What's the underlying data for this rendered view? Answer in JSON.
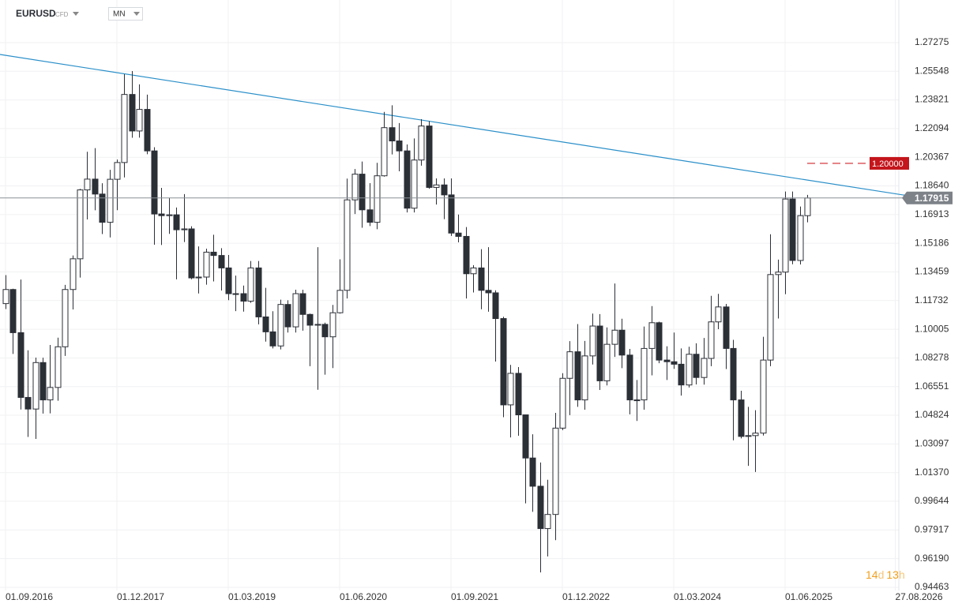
{
  "header": {
    "symbol": "EURUSD",
    "instrument": "CFD",
    "timeframe": "MN"
  },
  "countdown": [
    "14",
    "d",
    "13",
    "h"
  ],
  "chart_data": {
    "type": "candlestick",
    "x": [
      "01.09.2016",
      "01.10.2016",
      "01.11.2016",
      "01.12.2016",
      "01.01.2017",
      "01.02.2017",
      "01.03.2017",
      "01.04.2017",
      "01.05.2017",
      "01.06.2017",
      "01.07.2017",
      "01.08.2017",
      "01.09.2017",
      "01.10.2017",
      "01.11.2017",
      "01.12.2017",
      "01.01.2018",
      "01.02.2018",
      "01.03.2018",
      "01.04.2018",
      "01.05.2018",
      "01.06.2018",
      "01.07.2018",
      "01.08.2018",
      "01.09.2018",
      "01.10.2018",
      "01.11.2018",
      "01.12.2018",
      "01.01.2019",
      "01.02.2019",
      "01.03.2019",
      "01.04.2019",
      "01.05.2019",
      "01.06.2019",
      "01.07.2019",
      "01.08.2019",
      "01.09.2019",
      "01.10.2019",
      "01.11.2019",
      "01.12.2019",
      "01.01.2020",
      "01.02.2020",
      "01.03.2020",
      "01.04.2020",
      "01.05.2020",
      "01.06.2020",
      "01.07.2020",
      "01.08.2020",
      "01.09.2020",
      "01.10.2020",
      "01.11.2020",
      "01.12.2020",
      "01.01.2021",
      "01.02.2021",
      "01.03.2021",
      "01.04.2021",
      "01.05.2021",
      "01.06.2021",
      "01.07.2021",
      "01.08.2021",
      "01.09.2021",
      "01.10.2021",
      "01.11.2021",
      "01.12.2021",
      "01.01.2022",
      "01.02.2022",
      "01.03.2022",
      "01.04.2022",
      "01.05.2022",
      "01.06.2022",
      "01.07.2022",
      "01.08.2022",
      "01.09.2022",
      "01.10.2022",
      "01.11.2022",
      "01.12.2022",
      "01.01.2023",
      "01.02.2023",
      "01.03.2023",
      "01.04.2023",
      "01.05.2023",
      "01.06.2023",
      "01.07.2023",
      "01.08.2023",
      "01.09.2023",
      "01.10.2023",
      "01.11.2023",
      "01.12.2023",
      "01.01.2024",
      "01.02.2024",
      "01.03.2024",
      "01.04.2024",
      "01.05.2024",
      "01.06.2024",
      "01.07.2024",
      "01.08.2024",
      "01.09.2024",
      "01.10.2024",
      "01.11.2024",
      "01.12.2024",
      "01.01.2025",
      "01.02.2025",
      "01.03.2025",
      "01.04.2025",
      "01.05.2025",
      "01.06.2025",
      "01.07.2025",
      "01.08.2025",
      "01.09.2025"
    ],
    "open": [
      1.1155,
      1.124,
      1.098,
      1.059,
      1.052,
      1.08,
      1.0575,
      1.065,
      1.0895,
      1.124,
      1.1425,
      1.184,
      1.1905,
      1.1815,
      1.1645,
      1.1904,
      1.2005,
      1.2415,
      1.2195,
      1.2325,
      1.2075,
      1.1695,
      1.1685,
      1.169,
      1.16,
      1.1605,
      1.131,
      1.1315,
      1.1465,
      1.1445,
      1.137,
      1.1215,
      1.1215,
      1.117,
      1.137,
      1.1075,
      1.0985,
      1.09,
      1.115,
      1.1015,
      1.1215,
      1.109,
      1.1025,
      1.103,
      1.0955,
      1.11,
      1.1235,
      1.178,
      1.1935,
      1.172,
      1.1645,
      1.1925,
      1.2215,
      1.2135,
      1.2075,
      1.173,
      1.202,
      1.2225,
      1.1855,
      1.187,
      1.181,
      1.158,
      1.156,
      1.1335,
      1.137,
      1.1235,
      1.122,
      1.1065,
      1.0545,
      1.0735,
      1.0485,
      1.0225,
      1.0055,
      0.98,
      0.9885,
      1.0405,
      1.0705,
      1.0865,
      1.0575,
      1.084,
      1.102,
      1.069,
      1.091,
      1.0995,
      1.0845,
      1.0575,
      1.0575,
      1.0885,
      1.104,
      1.0815,
      1.0805,
      1.079,
      1.0665,
      1.085,
      1.071,
      1.0825,
      1.1045,
      1.1135,
      1.0885,
      1.0575,
      1.0355,
      1.036,
      1.0375,
      1.0815,
      1.133,
      1.1345,
      1.1785,
      1.1415,
      1.1685
    ],
    "high": [
      1.1327,
      1.1245,
      1.13,
      1.0874,
      1.083,
      1.0829,
      1.0906,
      1.095,
      1.1268,
      1.1445,
      1.1846,
      1.207,
      1.2092,
      1.188,
      1.1961,
      1.2023,
      1.2537,
      1.2556,
      1.2476,
      1.2414,
      1.2097,
      1.1852,
      1.1791,
      1.1734,
      1.1815,
      1.1621,
      1.15,
      1.1486,
      1.157,
      1.1489,
      1.1448,
      1.1324,
      1.1264,
      1.1412,
      1.1412,
      1.125,
      1.1109,
      1.1179,
      1.1175,
      1.1239,
      1.1239,
      1.1095,
      1.1495,
      1.104,
      1.1147,
      1.1422,
      1.1908,
      1.1966,
      1.2011,
      1.1881,
      1.2003,
      1.231,
      1.235,
      1.2243,
      1.2114,
      1.215,
      1.2266,
      1.2254,
      1.1909,
      1.1909,
      1.1909,
      1.1692,
      1.1616,
      1.1387,
      1.1483,
      1.1495,
      1.1235,
      1.1076,
      1.0786,
      1.0773,
      1.0486,
      1.0368,
      1.0198,
      1.0094,
      1.0497,
      1.0736,
      1.0929,
      1.1032,
      1.093,
      1.1095,
      1.1092,
      1.1012,
      1.1276,
      1.1064,
      1.0882,
      1.0695,
      1.1017,
      1.114,
      1.1046,
      1.0898,
      1.0981,
      1.0885,
      1.0895,
      1.0916,
      1.0948,
      1.1202,
      1.1214,
      1.1153,
      1.0937,
      1.063,
      1.0533,
      1.0513,
      1.0955,
      1.1573,
      1.142,
      1.183,
      1.183,
      1.174,
      1.181
    ],
    "low": [
      1.1122,
      1.0852,
      1.0517,
      1.0352,
      1.034,
      1.0493,
      1.0494,
      1.057,
      1.084,
      1.112,
      1.1312,
      1.1662,
      1.1717,
      1.1574,
      1.1554,
      1.1718,
      1.1915,
      1.2154,
      1.2155,
      1.2055,
      1.151,
      1.1508,
      1.1575,
      1.1301,
      1.1526,
      1.1302,
      1.1216,
      1.1269,
      1.1289,
      1.1234,
      1.1176,
      1.111,
      1.1107,
      1.116,
      1.103,
      1.0926,
      1.0885,
      1.0879,
      1.0981,
      1.0981,
      1.0992,
      1.0778,
      1.0636,
      1.0727,
      1.0767,
      1.1095,
      1.1186,
      1.1695,
      1.1612,
      1.1622,
      1.1603,
      1.192,
      1.2054,
      1.1952,
      1.1704,
      1.1704,
      1.1986,
      1.1847,
      1.1752,
      1.1664,
      1.1563,
      1.1524,
      1.1186,
      1.1222,
      1.1121,
      1.1106,
      1.0806,
      1.0471,
      1.0349,
      1.0359,
      0.9952,
      0.9901,
      0.9536,
      0.9632,
      0.973,
      1.0393,
      1.0483,
      1.0533,
      1.0516,
      1.0788,
      1.0635,
      1.0662,
      1.0834,
      1.0766,
      1.0488,
      1.0448,
      1.0516,
      1.0723,
      1.0796,
      1.0695,
      1.0762,
      1.0601,
      1.065,
      1.0668,
      1.0667,
      1.0778,
      1.1001,
      1.0761,
      1.0332,
      1.0343,
      1.0178,
      1.0141,
      1.036,
      1.0778,
      1.1065,
      1.1212,
      1.1392,
      1.1391,
      1.1645
    ],
    "close": [
      1.124,
      1.098,
      1.059,
      1.052,
      1.08,
      1.0575,
      1.065,
      1.0895,
      1.124,
      1.1425,
      1.184,
      1.1905,
      1.1815,
      1.1645,
      1.1904,
      1.2005,
      1.2415,
      1.2195,
      1.2325,
      1.2075,
      1.1695,
      1.1685,
      1.169,
      1.16,
      1.1605,
      1.131,
      1.1315,
      1.1465,
      1.1445,
      1.137,
      1.1215,
      1.1215,
      1.117,
      1.137,
      1.1075,
      1.0985,
      1.09,
      1.115,
      1.1015,
      1.1215,
      1.109,
      1.1025,
      1.103,
      1.0955,
      1.11,
      1.1235,
      1.178,
      1.1935,
      1.172,
      1.1645,
      1.1925,
      1.2215,
      1.2135,
      1.2075,
      1.173,
      1.202,
      1.2225,
      1.1855,
      1.187,
      1.181,
      1.158,
      1.156,
      1.1335,
      1.137,
      1.1235,
      1.122,
      1.1065,
      1.0545,
      1.0735,
      1.0485,
      1.0225,
      1.0055,
      0.98,
      0.9885,
      1.0405,
      1.0705,
      1.0865,
      1.0575,
      1.084,
      1.102,
      1.069,
      1.091,
      1.0995,
      1.0845,
      1.0575,
      1.0575,
      1.0885,
      1.104,
      1.0815,
      1.0805,
      1.079,
      1.0665,
      1.085,
      1.071,
      1.0825,
      1.1045,
      1.1135,
      1.0885,
      1.0575,
      1.0355,
      1.036,
      1.0375,
      1.0815,
      1.133,
      1.1345,
      1.1785,
      1.1415,
      1.1685,
      1.17915
    ],
    "up_color": "#ffffff",
    "down_color": "#2b2f36",
    "ylim": [
      0.9427,
      1.2984
    ],
    "yticks": [
      0.94463,
      {
        "value": 0.9619,
        "label": "0.96190"
      },
      0.97917,
      0.99644,
      {
        "value": 1.0137,
        "label": "1.01370"
      },
      1.03097,
      1.04824,
      1.06551,
      1.08278,
      1.10005,
      1.11732,
      1.13459,
      1.15186,
      1.16913,
      {
        "value": 1.1864,
        "label": "1.18640"
      },
      1.20367,
      1.22094,
      1.23821,
      1.25548,
      1.27275
    ],
    "xticks": [
      "01.09.2016",
      "01.12.2017",
      "01.03.2019",
      "01.06.2020",
      "01.09.2021",
      "01.12.2022",
      "01.03.2024",
      "01.06.2025",
      "27.08.2026"
    ],
    "grid": true,
    "last_price": 1.17915,
    "alert_level": {
      "value": 1.2,
      "label": "1.20000"
    }
  }
}
